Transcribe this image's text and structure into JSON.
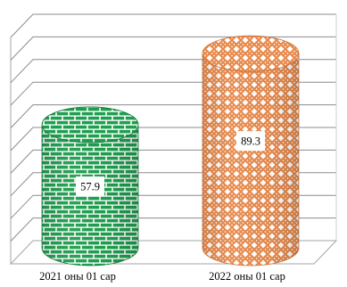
{
  "chart_data": {
    "type": "bar",
    "style": "3d-cylinder",
    "title": "",
    "xlabel": "",
    "ylabel": "",
    "grid": true,
    "ylim": [
      0,
      100
    ],
    "categories": [
      "2021 оны 01 сар",
      "2022 оны 01 сар"
    ],
    "values": [
      57.9,
      89.3
    ],
    "data_labels": [
      "57.9",
      "89.3"
    ],
    "colors": [
      "#1e9e4e",
      "#e8894a"
    ],
    "patterns": [
      "brick",
      "weave"
    ]
  }
}
